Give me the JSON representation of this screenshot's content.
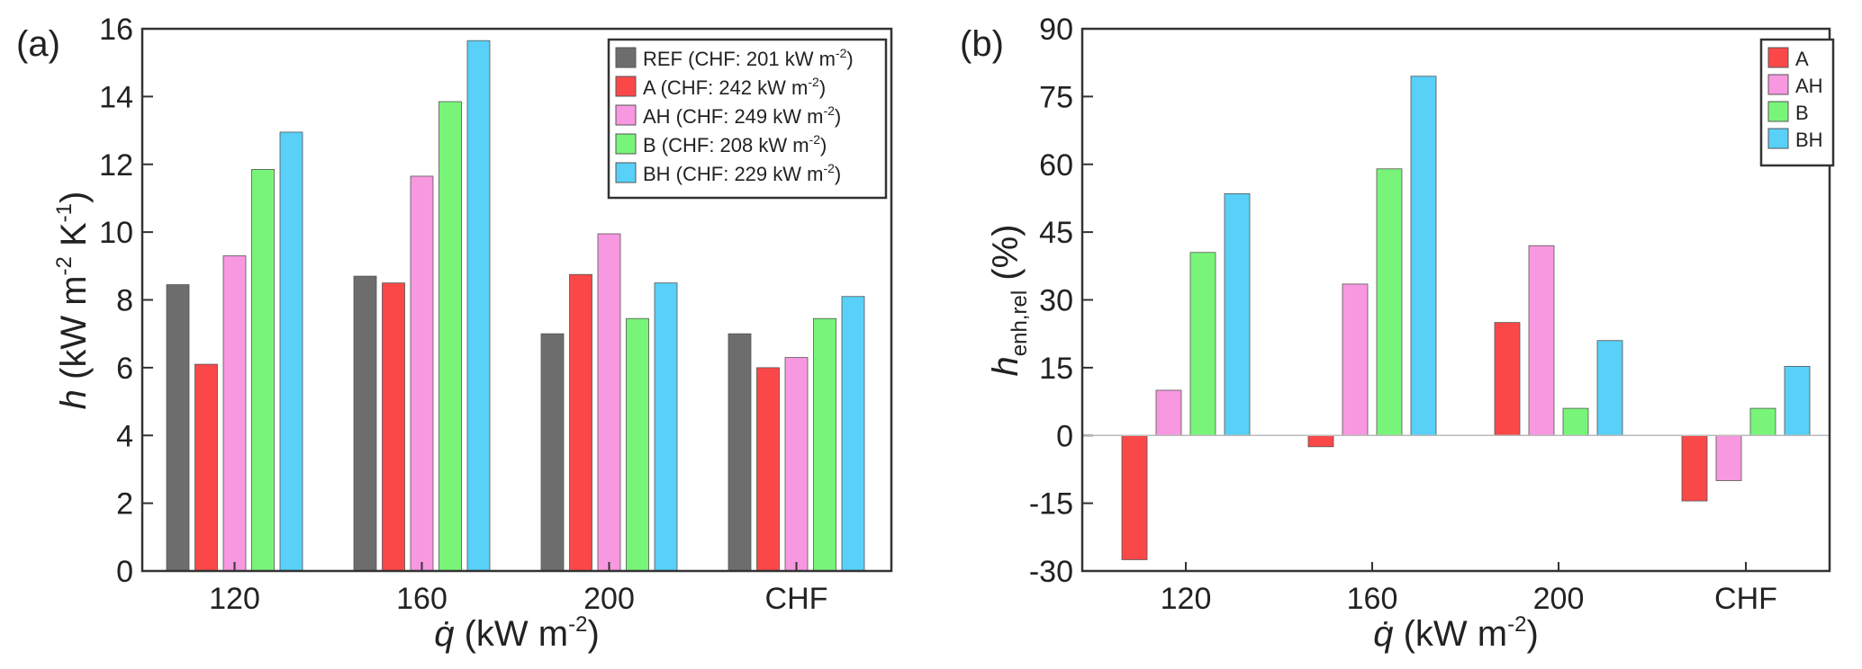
{
  "chart_data": [
    {
      "panel_label": "(a)",
      "type": "bar",
      "categories": [
        "120",
        "160",
        "200",
        "CHF"
      ],
      "ylim": [
        0,
        16
      ],
      "yticks": [
        "0",
        "2",
        "4",
        "6",
        "8",
        "10",
        "12",
        "14",
        "16"
      ],
      "xlabel": {
        "symbol": "q̇",
        "text": " (kW m",
        "sup": "-2",
        "close": ")"
      },
      "ylabel": {
        "symbol": "h",
        "text": " (kW m",
        "sup1": "-2",
        "mid": " K",
        "sup2": "-1",
        "close": ")"
      },
      "legend_position": "top-right",
      "series": [
        {
          "name": "REF",
          "legend": {
            "pre": "REF (CHF: 201 kW m",
            "sup": "-2",
            "post": ")"
          },
          "color": "#6d6d6d",
          "values": [
            8.45,
            8.7,
            7.0,
            7.0
          ]
        },
        {
          "name": "A",
          "legend": {
            "pre": "A (CHF: 242 kW m",
            "sup": "-2",
            "post": ")"
          },
          "color": "#fa4848",
          "values": [
            6.1,
            8.5,
            8.75,
            6.0
          ]
        },
        {
          "name": "AH",
          "legend": {
            "pre": "AH (CHF: 249 kW m",
            "sup": "-2",
            "post": ")"
          },
          "color": "#f898e0",
          "values": [
            9.3,
            11.65,
            9.95,
            6.3
          ]
        },
        {
          "name": "B",
          "legend": {
            "pre": "B (CHF: 208 kW m",
            "sup": "-2",
            "post": ")"
          },
          "color": "#78f578",
          "values": [
            11.85,
            13.85,
            7.45,
            7.45
          ]
        },
        {
          "name": "BH",
          "legend": {
            "pre": "BH (CHF: 229 kW m",
            "sup": "-2",
            "post": ")"
          },
          "color": "#58d0f8",
          "values": [
            12.95,
            15.65,
            8.5,
            8.1
          ]
        }
      ]
    },
    {
      "panel_label": "(b)",
      "type": "bar",
      "categories": [
        "120",
        "160",
        "200",
        "CHF"
      ],
      "ylim": [
        -30,
        90
      ],
      "yticks": [
        "-30",
        "-15",
        "0",
        "15",
        "30",
        "45",
        "60",
        "75",
        "90"
      ],
      "xlabel": {
        "symbol": "q̇",
        "text": " (kW m",
        "sup": "-2",
        "close": ")"
      },
      "ylabel": {
        "symbol": "h",
        "sub": "enh,rel",
        "text": " (%)"
      },
      "legend_position": "top-right",
      "series": [
        {
          "name": "A",
          "color": "#fa4848",
          "values": [
            -27.5,
            -2.5,
            25.0,
            -14.5
          ]
        },
        {
          "name": "AH",
          "color": "#f898e0",
          "values": [
            10.0,
            33.5,
            42.0,
            -10.0
          ]
        },
        {
          "name": "B",
          "color": "#78f578",
          "values": [
            40.5,
            59.0,
            6.0,
            6.0
          ]
        },
        {
          "name": "BH",
          "color": "#58d0f8",
          "values": [
            53.5,
            79.5,
            21.0,
            15.3
          ]
        }
      ]
    }
  ]
}
